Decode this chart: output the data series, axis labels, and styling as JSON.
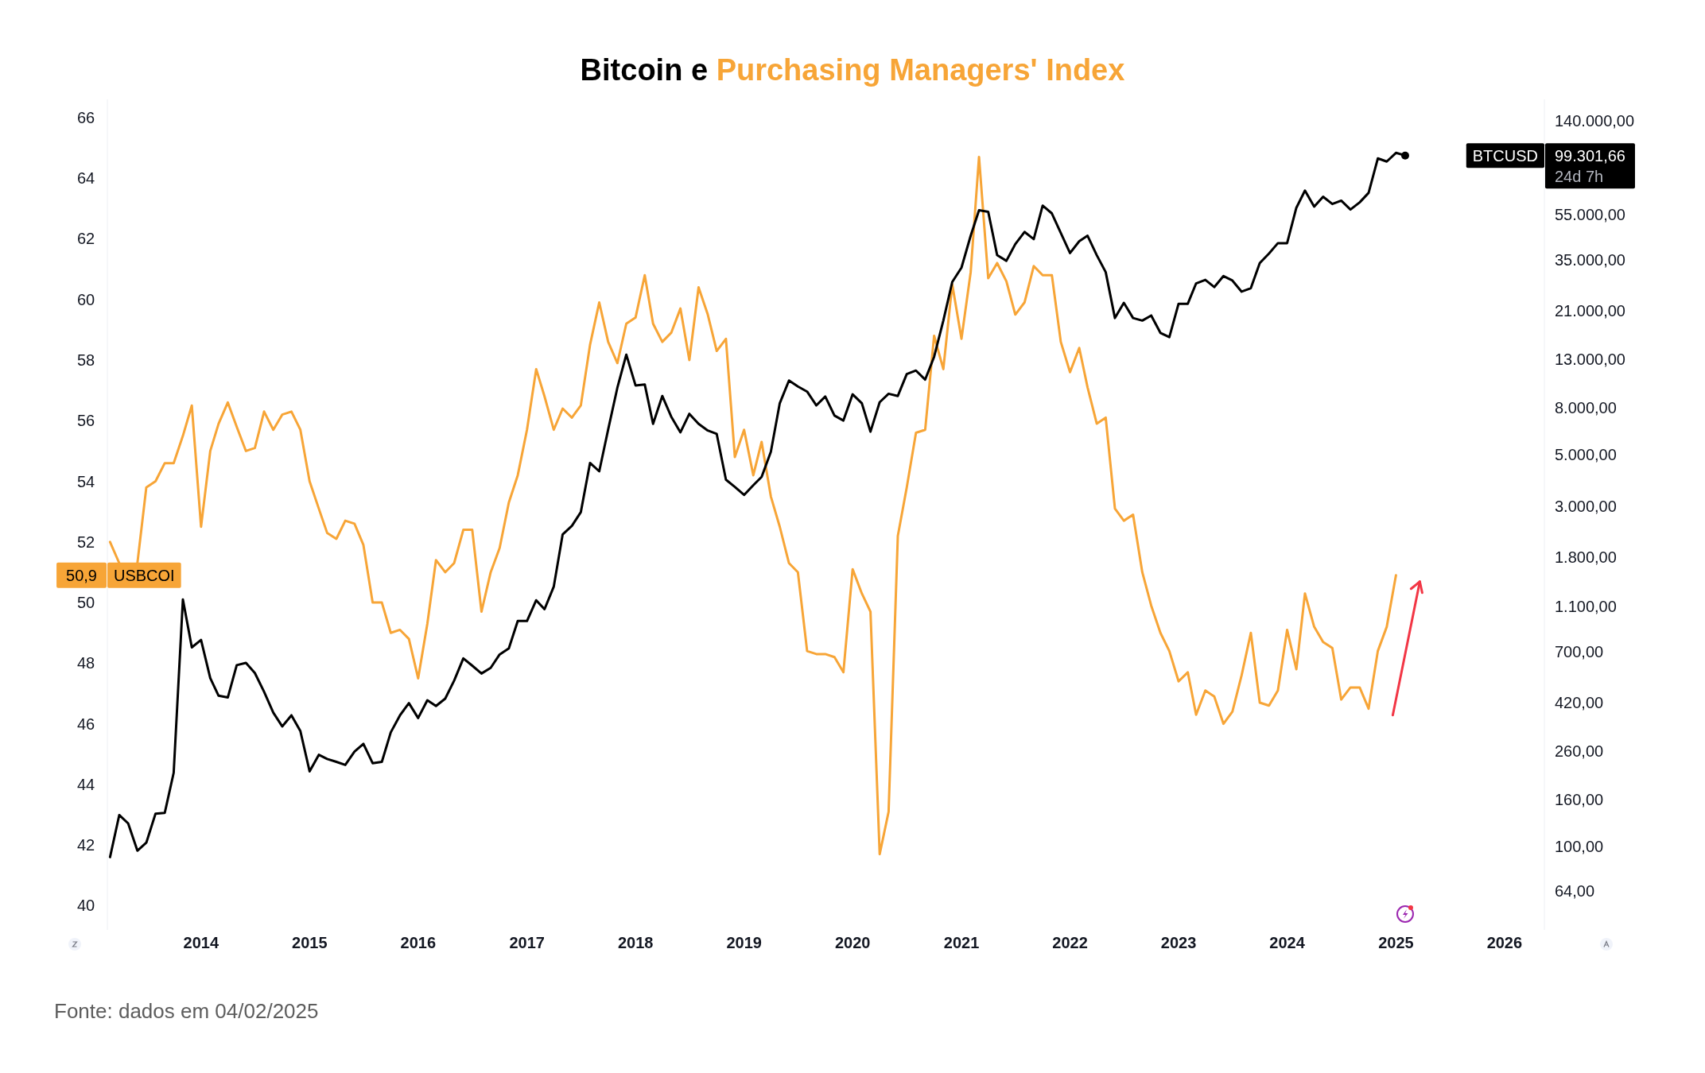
{
  "chart_data": {
    "type": "line",
    "title": "Bitcoin e Purchasing Managers' Index",
    "x": [
      "2013-03",
      "2013-04",
      "2013-05",
      "2013-06",
      "2013-07",
      "2013-08",
      "2013-09",
      "2013-10",
      "2013-11",
      "2013-12",
      "2014-01",
      "2014-02",
      "2014-03",
      "2014-04",
      "2014-05",
      "2014-06",
      "2014-07",
      "2014-08",
      "2014-09",
      "2014-10",
      "2014-11",
      "2014-12",
      "2015-01",
      "2015-02",
      "2015-03",
      "2015-04",
      "2015-05",
      "2015-06",
      "2015-07",
      "2015-08",
      "2015-09",
      "2015-10",
      "2015-11",
      "2015-12",
      "2016-01",
      "2016-02",
      "2016-03",
      "2016-04",
      "2016-05",
      "2016-06",
      "2016-07",
      "2016-08",
      "2016-09",
      "2016-10",
      "2016-11",
      "2016-12",
      "2017-01",
      "2017-02",
      "2017-03",
      "2017-04",
      "2017-05",
      "2017-06",
      "2017-07",
      "2017-08",
      "2017-09",
      "2017-10",
      "2017-11",
      "2017-12",
      "2018-01",
      "2018-02",
      "2018-03",
      "2018-04",
      "2018-05",
      "2018-06",
      "2018-07",
      "2018-08",
      "2018-09",
      "2018-10",
      "2018-11",
      "2018-12",
      "2019-01",
      "2019-02",
      "2019-03",
      "2019-04",
      "2019-05",
      "2019-06",
      "2019-07",
      "2019-08",
      "2019-09",
      "2019-10",
      "2019-11",
      "2019-12",
      "2020-01",
      "2020-02",
      "2020-03",
      "2020-04",
      "2020-05",
      "2020-06",
      "2020-07",
      "2020-08",
      "2020-09",
      "2020-10",
      "2020-11",
      "2020-12",
      "2021-01",
      "2021-02",
      "2021-03",
      "2021-04",
      "2021-05",
      "2021-06",
      "2021-07",
      "2021-08",
      "2021-09",
      "2021-10",
      "2021-11",
      "2021-12",
      "2022-01",
      "2022-02",
      "2022-03",
      "2022-04",
      "2022-05",
      "2022-06",
      "2022-07",
      "2022-08",
      "2022-09",
      "2022-10",
      "2022-11",
      "2022-12",
      "2023-01",
      "2023-02",
      "2023-03",
      "2023-04",
      "2023-05",
      "2023-06",
      "2023-07",
      "2023-08",
      "2023-09",
      "2023-10",
      "2023-11",
      "2023-12",
      "2024-01",
      "2024-02",
      "2024-03",
      "2024-04",
      "2024-05",
      "2024-06",
      "2024-07",
      "2024-08",
      "2024-09",
      "2024-10",
      "2024-11",
      "2024-12",
      "2025-01",
      "2025-02"
    ],
    "series": [
      {
        "name": "USBCOI",
        "color": "#f7a537",
        "values": [
          52.0,
          51.3,
          null,
          51.3,
          53.8,
          54.0,
          54.6,
          54.6,
          55.5,
          56.5,
          52.5,
          55.0,
          55.9,
          56.6,
          55.8,
          55.0,
          55.1,
          56.3,
          55.7,
          56.2,
          56.3,
          55.7,
          54.0,
          53.1,
          52.3,
          52.1,
          52.7,
          52.6,
          51.9,
          50.0,
          50.0,
          49.0,
          49.1,
          48.8,
          47.5,
          49.3,
          51.4,
          51.0,
          51.3,
          52.4,
          52.4,
          49.7,
          51.0,
          51.8,
          53.3,
          54.2,
          55.7,
          57.7,
          56.8,
          55.7,
          56.4,
          56.1,
          56.5,
          58.5,
          59.9,
          58.6,
          57.9,
          59.2,
          59.4,
          60.8,
          59.2,
          58.6,
          58.9,
          59.7,
          58.0,
          60.4,
          59.5,
          58.3,
          58.7,
          54.8,
          55.7,
          54.2,
          55.3,
          53.5,
          52.5,
          51.3,
          51.0,
          48.4,
          48.3,
          48.3,
          48.2,
          47.7,
          51.1,
          50.3,
          49.7,
          41.7,
          43.1,
          52.2,
          53.8,
          55.6,
          55.7,
          58.8,
          57.7,
          60.5,
          58.7,
          60.9,
          64.7,
          60.7,
          61.2,
          60.6,
          59.5,
          59.9,
          61.1,
          60.8,
          60.8,
          58.6,
          57.6,
          58.4,
          57.1,
          55.9,
          56.1,
          53.1,
          52.7,
          52.9,
          51.0,
          49.9,
          49.0,
          48.4,
          47.4,
          47.7,
          46.3,
          47.1,
          46.9,
          46.0,
          46.4,
          47.6,
          49.0,
          46.7,
          46.6,
          47.1,
          49.1,
          47.8,
          50.3,
          49.2,
          48.7,
          48.5,
          46.8,
          47.2,
          47.2,
          46.5,
          48.4,
          49.2,
          50.9,
          null
        ]
      },
      {
        "name": "BTCUSD",
        "color": "#000000",
        "axis": "y2",
        "values": [
          90,
          137,
          126,
          96,
          104,
          139,
          140,
          209,
          1180,
          731,
          787,
          538,
          451,
          443,
          612,
          626,
          566,
          469,
          381,
          332,
          371,
          317,
          212,
          250,
          240,
          233,
          226,
          258,
          279,
          230,
          233,
          313,
          371,
          419,
          361,
          431,
          407,
          438,
          524,
          655,
          609,
          563,
          596,
          681,
          724,
          951,
          951,
          1170,
          1070,
          1340,
          2260,
          2460,
          2820,
          4610,
          4240,
          6440,
          9780,
          13600,
          10000,
          10100,
          6810,
          9000,
          7320,
          6260,
          7530,
          6810,
          6370,
          6160,
          3900,
          3630,
          3350,
          3690,
          4010,
          5150,
          8370,
          10500,
          9890,
          9400,
          8190,
          8950,
          7400,
          7040,
          9150,
          8370,
          6300,
          8460,
          9200,
          9000,
          11200,
          11600,
          10600,
          13300,
          19100,
          28100,
          32400,
          44600,
          57500,
          56600,
          36700,
          34700,
          41000,
          46300,
          43100,
          60200,
          55700,
          45800,
          37500,
          42200,
          44600,
          36700,
          31000,
          19600,
          22800,
          19600,
          19100,
          20100,
          16900,
          16200,
          22600,
          22600,
          27700,
          28700,
          26700,
          29800,
          28500,
          25500,
          26400,
          33900,
          37300,
          41400,
          41400,
          58900,
          70000,
          59600,
          65800,
          61200,
          63300,
          57900,
          62200,
          68400,
          96500,
          93500,
          102000,
          99301.66
        ]
      }
    ],
    "xlim": [
      "2013-02-20",
      "2026-05-15"
    ],
    "xticks": [
      "2014",
      "2015",
      "2016",
      "2017",
      "2018",
      "2019",
      "2020",
      "2021",
      "2022",
      "2023",
      "2024",
      "2025",
      "2026"
    ],
    "ylim": [
      39.2,
      66.6
    ],
    "yticks": [
      40,
      42,
      44,
      46,
      48,
      50,
      {
        "value": 50.9,
        "label": "50,9"
      },
      52,
      54,
      56,
      58,
      60,
      62,
      64,
      66
    ],
    "y2lim": [
      43.5,
      174000
    ],
    "y2ticks": [
      {
        "value": 64,
        "label": "64,00"
      },
      {
        "value": 100,
        "label": "100,00"
      },
      {
        "value": 160,
        "label": "160,00"
      },
      {
        "value": 260,
        "label": "260,00"
      },
      {
        "value": 420,
        "label": "420,00"
      },
      {
        "value": 700,
        "label": "700,00"
      },
      {
        "value": 1100,
        "label": "1.100,00"
      },
      {
        "value": 1800,
        "label": "1.800,00"
      },
      {
        "value": 3000,
        "label": "3.000,00"
      },
      {
        "value": 5000,
        "label": "5.000,00"
      },
      {
        "value": 8000,
        "label": "8.000,00"
      },
      {
        "value": 13000,
        "label": "13.000,00"
      },
      {
        "value": 21000,
        "label": "21.000,00"
      },
      {
        "value": 35000,
        "label": "35.000,00"
      },
      {
        "value": 55000,
        "label": "55.000,00"
      },
      {
        "value": 99301.66,
        "label": "99.301,66"
      },
      {
        "value": 140000,
        "label": "140.000,00"
      }
    ],
    "log": "y2",
    "annotations": [
      "24d 7h",
      "Fonte: dados em 04/02/2025"
    ]
  }
}
